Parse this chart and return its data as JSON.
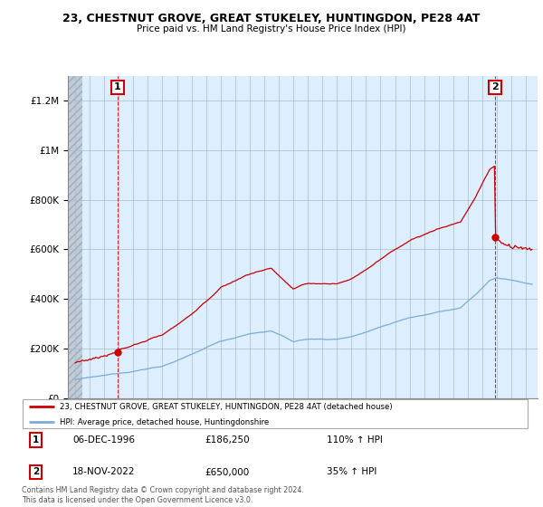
{
  "title": "23, CHESTNUT GROVE, GREAT STUKELEY, HUNTINGDON, PE28 4AT",
  "subtitle": "Price paid vs. HM Land Registry's House Price Index (HPI)",
  "ylim": [
    0,
    1300000
  ],
  "yticks": [
    0,
    200000,
    400000,
    600000,
    800000,
    1000000,
    1200000
  ],
  "ytick_labels": [
    "£0",
    "£200K",
    "£400K",
    "£600K",
    "£800K",
    "£1M",
    "£1.2M"
  ],
  "sale1_year": 1996.92,
  "sale1_price": 186250,
  "sale1_date": "06-DEC-1996",
  "sale1_hpi_pct": "110%",
  "sale2_year": 2022.88,
  "sale2_price": 650000,
  "sale2_date": "18-NOV-2022",
  "sale2_hpi_pct": "35%",
  "red_color": "#cc0000",
  "blue_color": "#7aacdc",
  "plot_bg_color": "#ddeeff",
  "hatch_color": "#bbccdd",
  "grid_color": "#aabbcc",
  "legend_label_red": "23, CHESTNUT GROVE, GREAT STUKELEY, HUNTINGDON, PE28 4AT (detached house)",
  "legend_label_blue": "HPI: Average price, detached house, Huntingdonshire",
  "footer": "Contains HM Land Registry data © Crown copyright and database right 2024.\nThis data is licensed under the Open Government Licence v3.0."
}
